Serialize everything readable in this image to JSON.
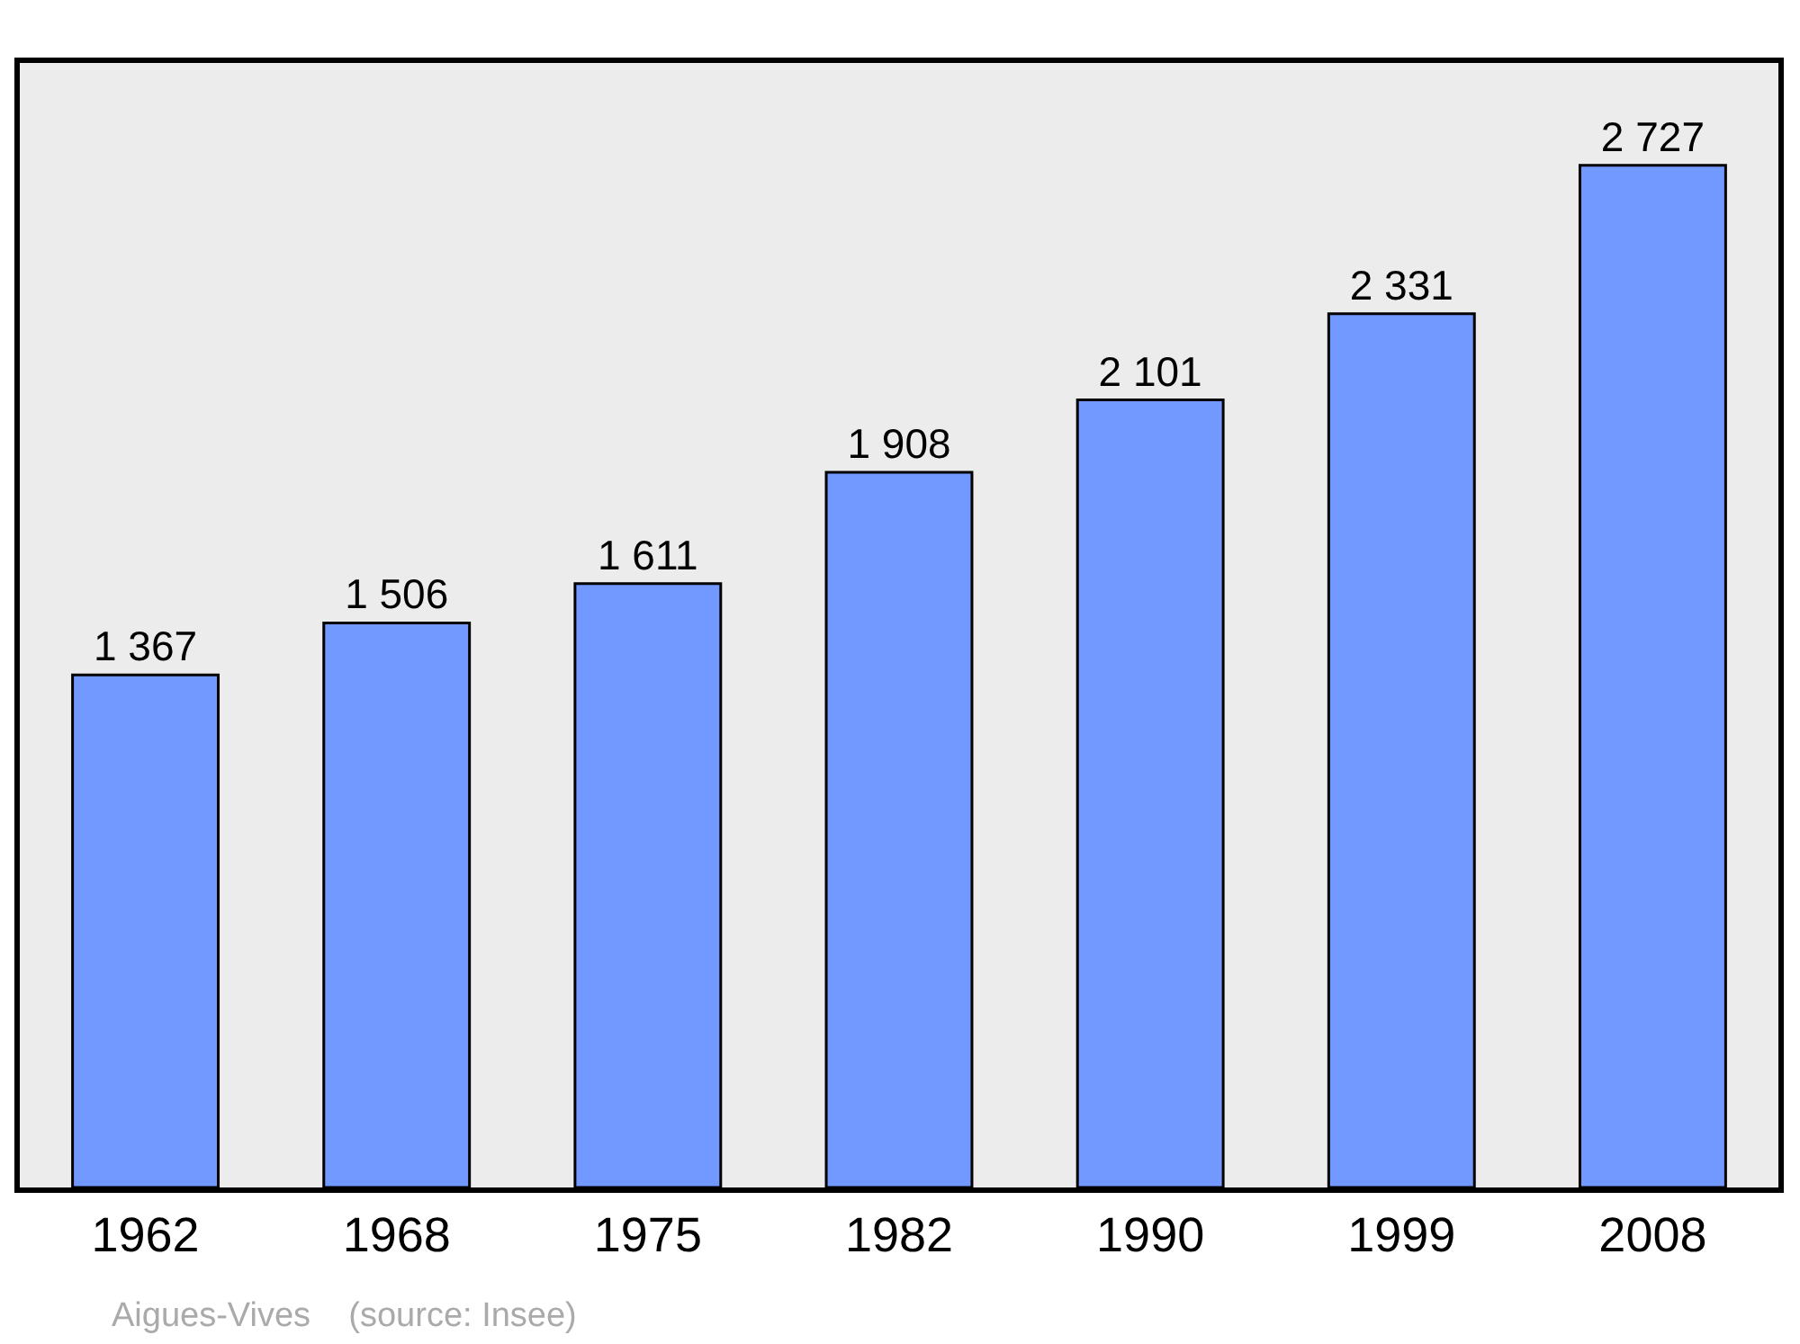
{
  "chart_data": {
    "type": "bar",
    "categories": [
      "1962",
      "1968",
      "1975",
      "1982",
      "1990",
      "1999",
      "2008"
    ],
    "values": [
      1367,
      1506,
      1611,
      1908,
      2101,
      2331,
      2727
    ],
    "value_labels": [
      "1 367",
      "1 506",
      "1 611",
      "1 908",
      "2 101",
      "2 331",
      "2 727"
    ],
    "color": "#7299ff",
    "tick_labels": "x",
    "annotations": [
      "Aigues-Vives    (source: Insee)"
    ]
  }
}
